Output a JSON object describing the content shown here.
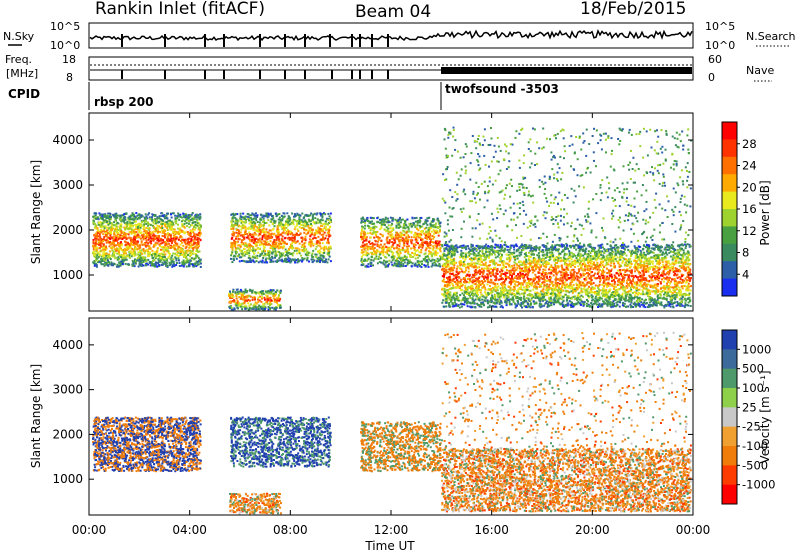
{
  "header": {
    "station": "Rankin Inlet (fitACF)",
    "beam": "Beam 04",
    "date": "18/Feb/2015"
  },
  "panels": {
    "nsky_label": "N.Sky",
    "nsky_ticks": [
      "10^5",
      "10^0"
    ],
    "nsearch_label": "N.Search",
    "nsearch_ticks": [
      "10^5",
      "10^0"
    ],
    "freq_label_1": "Freq.",
    "freq_label_2": "[MHz]",
    "freq_ticks": [
      "18",
      "8"
    ],
    "nave_label": "Nave",
    "nave_ticks": [
      "60",
      "0"
    ],
    "cpid_label": "CPID",
    "cpid_1": "rbsp 200",
    "cpid_2": "twofsound -3503"
  },
  "chart_data": [
    {
      "type": "heatmap",
      "xlabel": "",
      "ylabel": "Slant Range [km]",
      "ylim": [
        200,
        4600
      ],
      "y_ticks": [
        "1000",
        "2000",
        "3000",
        "4000"
      ],
      "colorbar_label": "Power [dB]",
      "colorbar_ticks": [
        "28",
        "24",
        "20",
        "16",
        "12",
        "8",
        "4"
      ],
      "colorscale": [
        "#ff0000",
        "#ff3300",
        "#ff7000",
        "#ffaa00",
        "#e8ea1d",
        "#9ed22e",
        "#48a040",
        "#3a8a60",
        "#2d5fa8",
        "#1a2ef0"
      ]
    },
    {
      "type": "heatmap",
      "xlabel": "Time UT",
      "ylabel": "Slant Range [km]",
      "ylim": [
        200,
        4600
      ],
      "x_ticks": [
        "00:00",
        "04:00",
        "08:00",
        "12:00",
        "16:00",
        "20:00",
        "00:00"
      ],
      "y_ticks": [
        "1000",
        "2000",
        "3000",
        "4000"
      ],
      "colorbar_label": "Velocity [m s⁻¹]",
      "colorbar_ticks": [
        "1000",
        "500",
        "100",
        "25",
        "-25",
        "-100",
        "-500",
        "-1000"
      ],
      "colorscale": [
        "#2040b0",
        "#3c6a9a",
        "#4f9a6a",
        "#8fd04a",
        "#c8c8c8",
        "#f0a030",
        "#f07d0a",
        "#ff3c00",
        "#ff0000"
      ]
    }
  ]
}
